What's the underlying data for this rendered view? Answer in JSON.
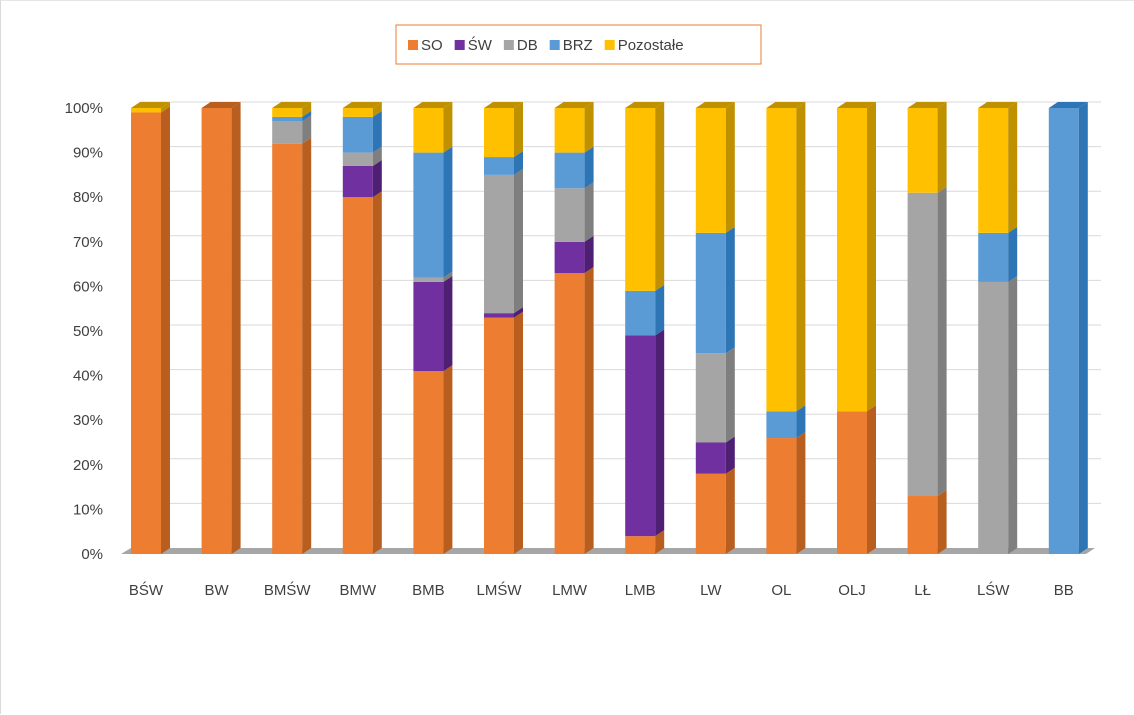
{
  "chart_data": {
    "type": "bar",
    "stacked": true,
    "percent": true,
    "three_d": true,
    "categories": [
      "BŚW",
      "BW",
      "BMŚW",
      "BMW",
      "BMB",
      "LMŚW",
      "LMW",
      "LMB",
      "LW",
      "OL",
      "OLJ",
      "LŁ",
      "LŚW",
      "BB"
    ],
    "series": [
      {
        "name": "SO",
        "color": "#ED7D31",
        "dark": "#B85F1F",
        "values": [
          99,
          100,
          92,
          80,
          41,
          53,
          63,
          4,
          18,
          26,
          32,
          13,
          0,
          0
        ]
      },
      {
        "name": "ŚW",
        "color": "#7030A0",
        "dark": "#4F1F73",
        "values": [
          0,
          0,
          0,
          7,
          20,
          1,
          7,
          45,
          7,
          0,
          0,
          0,
          0,
          0
        ]
      },
      {
        "name": "DB",
        "color": "#A5A5A5",
        "dark": "#7F7F7F",
        "values": [
          0,
          0,
          5,
          3,
          1,
          31,
          12,
          0,
          20,
          0,
          0,
          68,
          61,
          0
        ]
      },
      {
        "name": "BRZ",
        "color": "#5B9BD5",
        "dark": "#2E75B6",
        "values": [
          0,
          0,
          1,
          8,
          28,
          4,
          8,
          10,
          27,
          6,
          0,
          0,
          11,
          100
        ]
      },
      {
        "name": "Pozostałe",
        "color": "#FFC000",
        "dark": "#BF9000",
        "values": [
          1,
          0,
          2,
          2,
          10,
          11,
          10,
          41,
          28,
          68,
          68,
          19,
          28,
          0
        ]
      }
    ],
    "y_ticks": [
      "0%",
      "10%",
      "20%",
      "30%",
      "40%",
      "50%",
      "60%",
      "70%",
      "80%",
      "90%",
      "100%"
    ],
    "ylim": [
      0,
      100
    ],
    "grid": true,
    "legend_position": "top-center",
    "legend_border_color": "#ED7D31",
    "title": "",
    "xlabel": "",
    "ylabel": ""
  }
}
